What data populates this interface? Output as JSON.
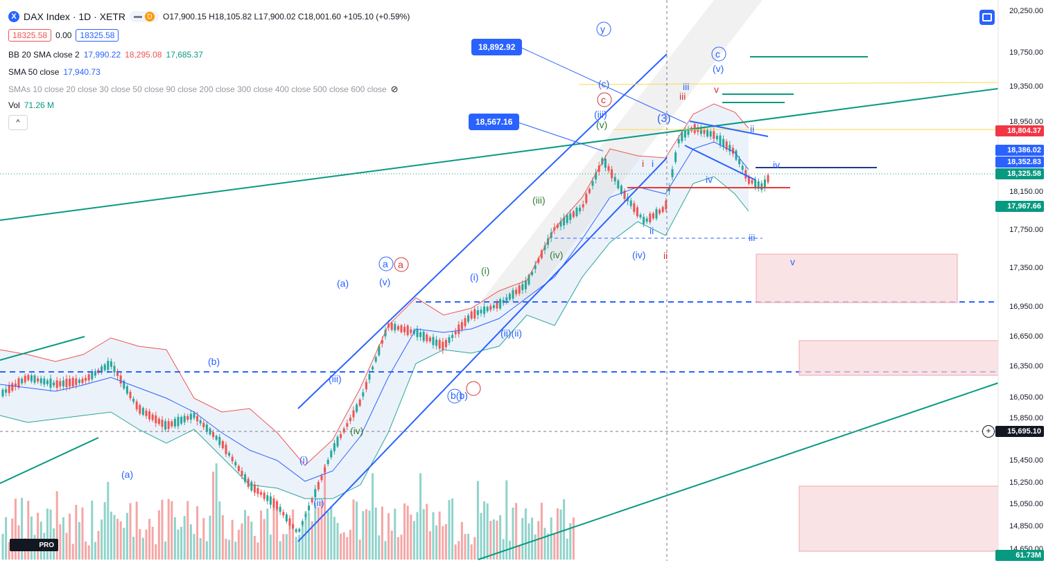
{
  "header": {
    "symbol_icon": "x-logo-icon",
    "title": "DAX Index · 1D · XETR",
    "mode_badge": "D",
    "ohlc": "O17,900.15 H18,105.82 L17,900.02 C18,001.60 +105.10 (+0.59%)",
    "sell": "18325.58",
    "spread": "0.00",
    "buy": "18325.58"
  },
  "indicators": {
    "bb_label": "BB 20 SMA close 2",
    "bb_mid": "17,990.22",
    "bb_upper": "18,295.08",
    "bb_lower": "17,685.37",
    "sma_label": "SMA 50 close",
    "sma_value": "17,940.73",
    "smas_label": "SMAs 10 close 20 close 30 close 50 close 90 close 200 close 300 close 400 close 500 close 600 close",
    "vol_label": "Vol",
    "vol_value": "71.26 M"
  },
  "price_axis": [
    "20,250.00",
    "19,750.00",
    "19,350.00",
    "18,950.00",
    "18,150.00",
    "17,750.00",
    "17,350.00",
    "16,950.00",
    "16,650.00",
    "16,350.00",
    "16,050.00",
    "15,850.00",
    "15,450.00",
    "15,250.00",
    "15,050.00",
    "14,850.00",
    "14,650.00"
  ],
  "price_tags": {
    "red_level": "18,804.37",
    "blue_level": "18,386.02",
    "blue_level2": "18,352.83",
    "last_price": "18,325.58",
    "green_level": "17,967.66",
    "cursor_price": "15,695.10",
    "volume_tag": "61.73M"
  },
  "callouts": {
    "c1": "18,892.92",
    "c2": "18,567.16"
  },
  "wave_labels": {
    "y": "y",
    "a": "a",
    "c": "c",
    "ii": "ii",
    "iii": "iii",
    "iv": "iv",
    "v": "v",
    "i": "i",
    "p_a": "(a)",
    "p_b": "(b)",
    "p_c": "(c)",
    "p_i": "(i)",
    "p_ii": "(ii)",
    "p_iii": "(iii)",
    "p_iv": "(iv)",
    "p_v": "(v)",
    "p_3": "(3)",
    "p_iii_ii": "(ii)(ii)",
    "b_b": "b(b)"
  },
  "colors": {
    "up": "#26a69a",
    "down": "#ef5350",
    "blue": "#2962ff",
    "wave_blue": "#2962ff",
    "wave_red": "#d32f2f",
    "wave_green": "#2e7d32"
  },
  "logo_text": "PRO",
  "collapse_icon": "chevron-up-icon",
  "fullscreen_icon": "fullscreen-icon",
  "crosshair_icon": "plus-circle-icon"
}
